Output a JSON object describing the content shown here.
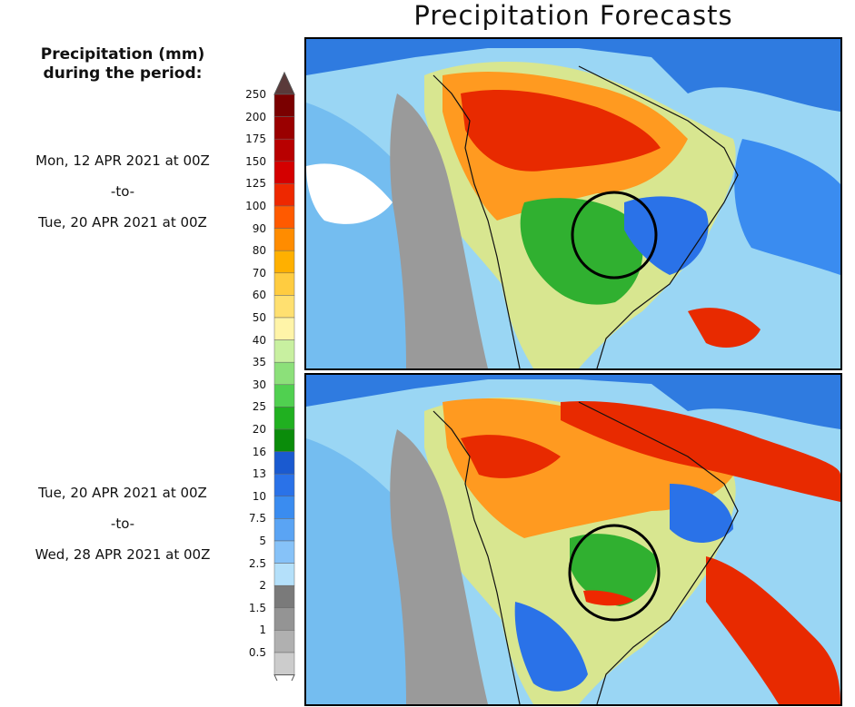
{
  "title": "Precipitation Forecasts",
  "legend": {
    "title_line1": "Precipitation (mm)",
    "title_line2": "during the period:",
    "levels": [
      "250",
      "200",
      "175",
      "150",
      "125",
      "100",
      "90",
      "80",
      "70",
      "60",
      "50",
      "40",
      "35",
      "30",
      "25",
      "20",
      "16",
      "13",
      "10",
      "7.5",
      "5",
      "2.5",
      "2",
      "1.5",
      "1",
      "0.5"
    ],
    "colors": [
      "#7a0000",
      "#9a0000",
      "#b80000",
      "#d40000",
      "#ee2800",
      "#ff5a00",
      "#ff8c00",
      "#ffb000",
      "#ffcc40",
      "#ffe070",
      "#fff4a8",
      "#c8f0a0",
      "#8ce07a",
      "#50d050",
      "#20b020",
      "#0a8c0a",
      "#1a5ad0",
      "#2a72e8",
      "#3a8cf0",
      "#5aa4f4",
      "#86c2f8",
      "#b4e0fa",
      "#7a7a7a",
      "#949494",
      "#b0b0b0",
      "#cccccc"
    ],
    "top_arrow_color": "#5a3a3a"
  },
  "periods": [
    {
      "start": "Mon, 12 APR 2021 at 00Z",
      "sep": "-to-",
      "end": "Tue, 20 APR 2021 at 00Z"
    },
    {
      "start": "Tue, 20 APR 2021 at 00Z",
      "sep": "-to-",
      "end": "Wed, 28 APR 2021 at 00Z"
    }
  ]
}
